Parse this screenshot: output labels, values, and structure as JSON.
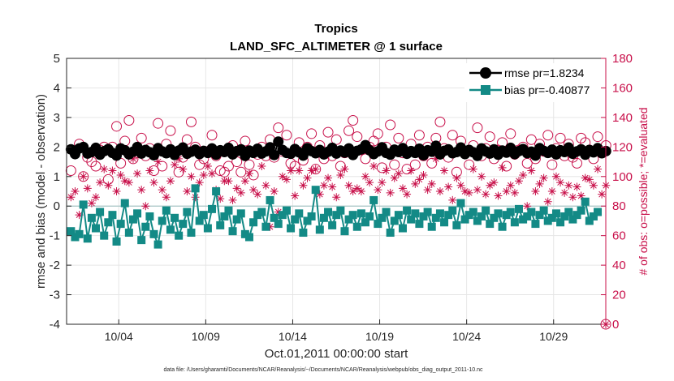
{
  "chart_data": {
    "type": "line",
    "title": "Tropics",
    "subtitle": "LAND_SFC_ALTIMETER @ 1 surface",
    "xlabel": "Oct.01,2011 00:00:00 start",
    "ylabel": "rmse and bias (model - observation)",
    "ylabel_right": "# of obs: o=possible; *=evaluated",
    "footer": "data file: /Users/gharamti/Documents/NCAR/Reanalysis/~/Documents/NCAR/Reanalysis/webpub/obs_diag_output_2011-10.nc",
    "x_tick_labels": [
      "10/04",
      "10/09",
      "10/14",
      "10/19",
      "10/24",
      "10/29"
    ],
    "x_tick_days": [
      4,
      9,
      14,
      19,
      24,
      29
    ],
    "xlim_days": [
      1,
      32
    ],
    "ylim": [
      -4,
      5
    ],
    "y_ticks": [
      "5",
      "4",
      "3",
      "2",
      "1",
      "0",
      "-1",
      "-2",
      "-3",
      "-4"
    ],
    "ylim_right": [
      0,
      180
    ],
    "y_ticks_right": [
      "180",
      "160",
      "140",
      "120",
      "100",
      "80",
      "60",
      "40",
      "20",
      "0"
    ],
    "legend_position": "top-right",
    "colors": {
      "rmse": "#000000",
      "bias": "#138a86",
      "obs": "#c8104a",
      "zero": "#a9c7c7",
      "grid": "#e6e6e6"
    },
    "series": [
      {
        "name": "rmse pr=1.8234",
        "axis": "left",
        "marker": "filled-circle",
        "values": [
          1.92,
          1.76,
          1.95,
          2.0,
          1.78,
          1.83,
          1.97,
          1.74,
          1.86,
          1.93,
          1.8,
          1.71,
          1.95,
          1.89,
          1.75,
          1.84,
          2.0,
          1.78,
          1.9,
          1.82,
          1.72,
          1.96,
          1.85,
          1.79,
          1.92,
          1.73,
          1.88,
          1.98,
          1.77,
          1.84,
          1.91,
          1.76,
          1.87,
          1.8,
          1.95,
          1.74,
          1.89,
          1.83,
          1.97,
          1.75,
          1.86,
          1.92,
          1.7,
          1.88,
          1.8,
          1.94,
          1.78,
          1.85,
          1.99,
          1.73,
          2.18,
          1.9,
          1.8,
          1.77,
          1.93,
          1.82,
          1.71,
          1.96,
          1.86,
          1.79,
          1.9,
          1.75,
          1.84,
          1.97,
          1.78,
          1.88,
          1.81,
          1.95,
          1.73,
          1.87,
          1.92,
          2.06,
          1.89,
          1.76,
          1.85,
          1.99,
          1.8,
          1.74,
          1.91,
          1.83,
          1.96,
          1.77,
          1.86,
          1.8,
          1.94,
          1.72,
          1.89,
          1.84,
          2.04,
          1.75,
          1.87,
          1.92,
          1.79,
          1.83,
          1.98,
          1.76,
          1.9,
          1.82,
          1.7,
          1.95,
          1.85,
          1.78,
          1.92,
          1.74,
          1.88,
          1.81,
          1.97,
          1.76,
          1.86,
          1.93,
          1.79,
          1.84,
          1.71,
          1.96,
          1.87,
          1.8,
          1.91,
          1.75,
          1.89,
          1.83,
          1.98,
          1.77,
          1.85,
          1.92,
          1.74,
          1.9,
          1.82,
          1.96,
          1.79,
          1.86
        ]
      },
      {
        "name": "bias pr=-0.40877",
        "axis": "left",
        "marker": "filled-square",
        "values": [
          -0.85,
          -1.05,
          -0.95,
          0.05,
          -1.1,
          -0.4,
          -0.75,
          -0.2,
          -1.0,
          -0.55,
          -0.3,
          -1.2,
          -0.6,
          0.1,
          -0.9,
          -0.45,
          -0.25,
          -1.15,
          -0.7,
          -0.35,
          -0.95,
          -1.3,
          -0.5,
          -0.15,
          -0.8,
          -0.4,
          -1.0,
          -0.6,
          -0.2,
          -0.9,
          0.6,
          -0.5,
          -0.3,
          -0.75,
          -0.1,
          0.5,
          -0.65,
          -0.35,
          -0.15,
          -0.85,
          -0.45,
          -0.25,
          -0.95,
          -1.05,
          -0.55,
          -0.3,
          -0.2,
          -0.7,
          0.2,
          -0.4,
          -0.6,
          -0.3,
          -0.15,
          -0.75,
          -0.45,
          -0.25,
          -0.9,
          -0.5,
          -0.35,
          0.55,
          -0.8,
          -0.4,
          -0.2,
          -0.65,
          -0.3,
          -0.15,
          -0.85,
          -0.45,
          -0.3,
          -0.7,
          -0.25,
          -0.55,
          -0.35,
          0.2,
          -0.6,
          -0.4,
          -0.2,
          -0.9,
          -0.5,
          -0.3,
          -0.75,
          -0.15,
          -0.45,
          -0.25,
          -0.6,
          -0.35,
          -0.2,
          -0.7,
          -0.4,
          -0.25,
          -0.55,
          -0.3,
          -0.15,
          -0.65,
          0.1,
          -0.45,
          -0.3,
          -0.2,
          -0.5,
          -0.35,
          -0.15,
          -0.6,
          -0.4,
          -0.25,
          -0.7,
          -0.3,
          -0.2,
          -0.55,
          -0.1,
          -0.45,
          -0.35,
          -0.2,
          -0.6,
          -0.3,
          -0.15,
          -0.5,
          -0.4,
          -0.25,
          -0.55,
          -0.35,
          -0.2,
          -0.45,
          -0.3,
          -0.15,
          0.15,
          -0.5,
          -0.35,
          -0.2
        ]
      },
      {
        "name": "possible",
        "axis": "right",
        "marker": "open-circle",
        "values": [
          104,
          116,
          122,
          100,
          113,
          110,
          107,
          118,
          120,
          98,
          120,
          134,
          109,
          124,
          138,
          112,
          116,
          126,
          114,
          119,
          104,
          136,
          107,
          122,
          131,
          115,
          103,
          113,
          125,
          137,
          120,
          108,
          112,
          117,
          128,
          114,
          104,
          103,
          107,
          121,
          110,
          103,
          124,
          108,
          101,
          115,
          120,
          114,
          125,
          113,
          133,
          117,
          128,
          109,
          107,
          123,
          111,
          120,
          129,
          105,
          121,
          112,
          130,
          114,
          125,
          107,
          116,
          131,
          138,
          127,
          118,
          112,
          120,
          124,
          129,
          106,
          120,
          135,
          108,
          126,
          116,
          105,
          122,
          108,
          128,
          114,
          120,
          109,
          126,
          137,
          119,
          113,
          128,
          103,
          124,
          116,
          108,
          121,
          133,
          114,
          119,
          127,
          112,
          118,
          123,
          107,
          129,
          115,
          118,
          120,
          109,
          125,
          112,
          122,
          117,
          128,
          108,
          119,
          126,
          114,
          122,
          113,
          109,
          126,
          123,
          118,
          112,
          127,
          116,
          121
        ]
      },
      {
        "name": "evaluated",
        "axis": "right",
        "marker": "asterisk",
        "values": [
          86,
          90,
          74,
          100,
          92,
          82,
          86,
          96,
          105,
          94,
          104,
          90,
          101,
          97,
          96,
          112,
          102,
          91,
          80,
          104,
          96,
          110,
          91,
          86,
          97,
          108,
          112,
          105,
          90,
          100,
          86,
          96,
          101,
          107,
          102,
          91,
          85,
          97,
          97,
          84,
          92,
          89,
          97,
          102,
          91,
          88,
          107,
          94,
          66,
          90,
          76,
          100,
          98,
          104,
          87,
          104,
          94,
          99,
          104,
          105,
          88,
          94,
          99,
          93,
          86,
          101,
          105,
          94,
          90,
          92,
          90,
          100,
          96,
          107,
          91,
          96,
          104,
          89,
          99,
          102,
          92,
          88,
          104,
          95,
          98,
          101,
          91,
          95,
          112,
          90,
          104,
          93,
          84,
          99,
          94,
          90,
          89,
          105,
          91,
          100,
          88,
          94,
          96,
          87,
          106,
          90,
          94,
          89,
          97,
          101,
          80,
          104,
          90,
          95,
          99,
          83,
          90,
          100,
          96,
          89,
          94,
          86,
          93,
          87,
          99,
          98,
          94,
          105,
          88,
          94
        ]
      }
    ]
  }
}
